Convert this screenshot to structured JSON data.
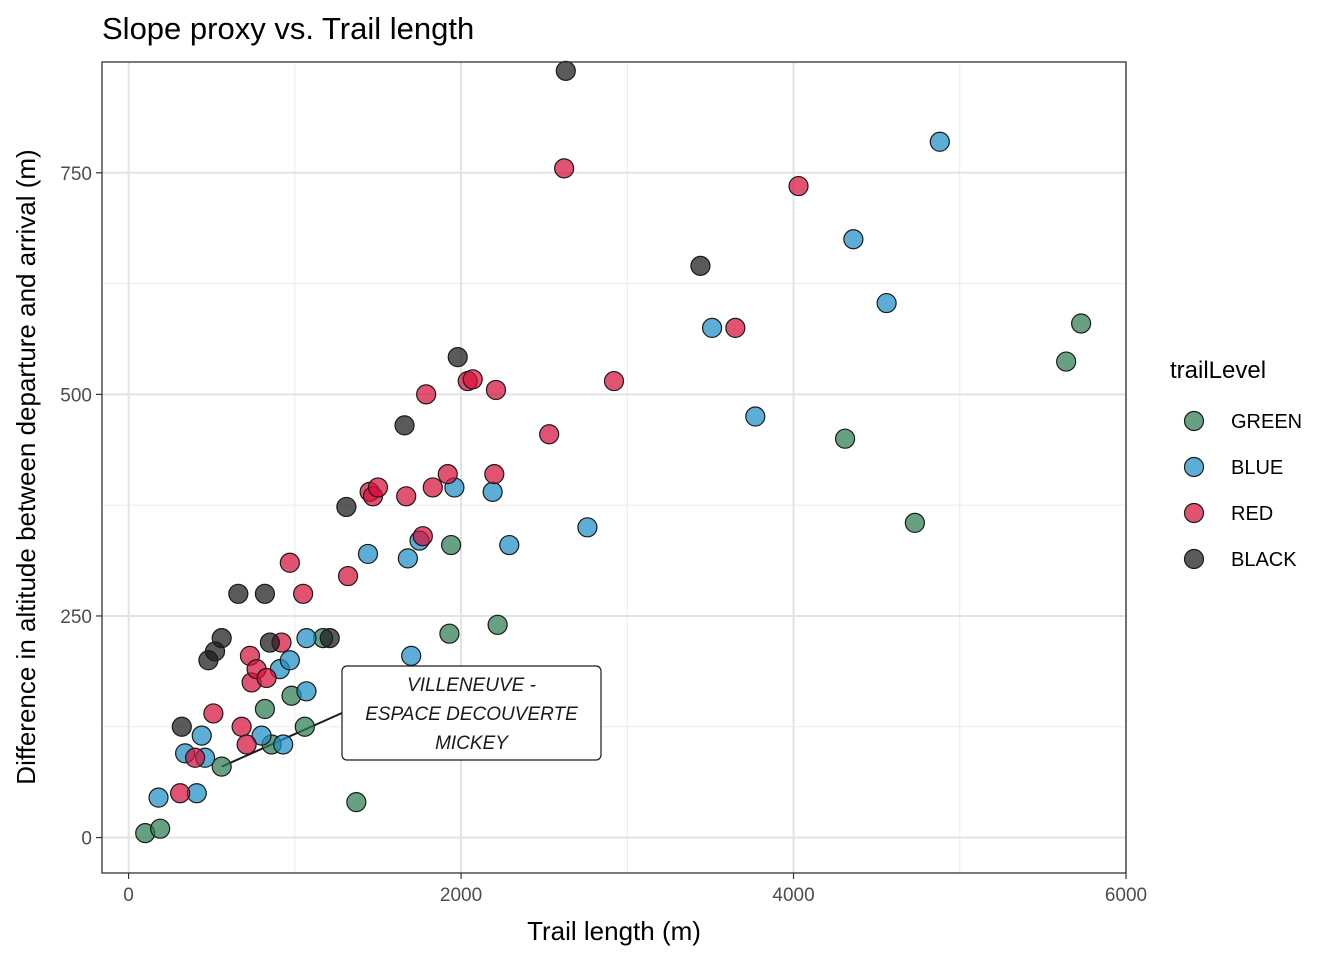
{
  "chart_data": {
    "type": "scatter",
    "title": "Slope proxy vs. Trail length",
    "xlabel": "Trail length (m)",
    "ylabel": "Difference in altitude between departure and arrival (m)",
    "xlim": [
      -160,
      6000
    ],
    "ylim": [
      -40,
      875
    ],
    "x_ticks": [
      0,
      2000,
      4000,
      6000
    ],
    "x_tick_labels": [
      "0",
      "2000",
      "4000",
      "6000"
    ],
    "y_ticks": [
      0,
      250,
      500,
      750
    ],
    "y_tick_labels": [
      "0",
      "250",
      "500",
      "750"
    ],
    "grid": true,
    "legend": {
      "title": "trailLevel",
      "position": "right",
      "entries": [
        {
          "label": "GREEN",
          "color": "#2E7D52"
        },
        {
          "label": "BLUE",
          "color": "#1F8FC8"
        },
        {
          "label": "RED",
          "color": "#D5103A"
        },
        {
          "label": "BLACK",
          "color": "#1B1B1B"
        }
      ]
    },
    "series": [
      {
        "name": "GREEN",
        "color": "#2E7D52",
        "points": [
          [
            100,
            5
          ],
          [
            190,
            10
          ],
          [
            560,
            80
          ],
          [
            820,
            145
          ],
          [
            860,
            105
          ],
          [
            980,
            160
          ],
          [
            1060,
            125
          ],
          [
            1170,
            225
          ],
          [
            1370,
            40
          ],
          [
            1930,
            230
          ],
          [
            1940,
            330
          ],
          [
            2220,
            240
          ],
          [
            4310,
            450
          ],
          [
            4730,
            355
          ],
          [
            5640,
            537
          ],
          [
            5730,
            580
          ]
        ]
      },
      {
        "name": "BLUE",
        "color": "#1F8FC8",
        "points": [
          [
            180,
            45
          ],
          [
            340,
            95
          ],
          [
            410,
            50
          ],
          [
            440,
            115
          ],
          [
            460,
            90
          ],
          [
            800,
            115
          ],
          [
            910,
            190
          ],
          [
            930,
            105
          ],
          [
            970,
            200
          ],
          [
            1070,
            165
          ],
          [
            1070,
            225
          ],
          [
            1440,
            320
          ],
          [
            1680,
            180
          ],
          [
            1680,
            315
          ],
          [
            1700,
            205
          ],
          [
            1750,
            335
          ],
          [
            1960,
            395
          ],
          [
            2190,
            390
          ],
          [
            2290,
            330
          ],
          [
            2760,
            350
          ],
          [
            3510,
            575
          ],
          [
            3770,
            475
          ],
          [
            4360,
            675
          ],
          [
            4560,
            603
          ],
          [
            4880,
            785
          ]
        ]
      },
      {
        "name": "RED",
        "color": "#D5103A",
        "points": [
          [
            310,
            50
          ],
          [
            400,
            90
          ],
          [
            510,
            140
          ],
          [
            680,
            125
          ],
          [
            710,
            105
          ],
          [
            730,
            205
          ],
          [
            740,
            175
          ],
          [
            770,
            190
          ],
          [
            830,
            180
          ],
          [
            920,
            220
          ],
          [
            970,
            310
          ],
          [
            1050,
            275
          ],
          [
            1320,
            295
          ],
          [
            1450,
            390
          ],
          [
            1470,
            385
          ],
          [
            1500,
            395
          ],
          [
            1670,
            385
          ],
          [
            1770,
            340
          ],
          [
            1790,
            500
          ],
          [
            1830,
            395
          ],
          [
            1920,
            410
          ],
          [
            2040,
            515
          ],
          [
            2070,
            517
          ],
          [
            2200,
            410
          ],
          [
            2210,
            505
          ],
          [
            2530,
            455
          ],
          [
            2620,
            755
          ],
          [
            2920,
            515
          ],
          [
            3650,
            575
          ],
          [
            4030,
            735
          ]
        ]
      },
      {
        "name": "BLACK",
        "color": "#1B1B1B",
        "points": [
          [
            320,
            125
          ],
          [
            480,
            200
          ],
          [
            520,
            210
          ],
          [
            560,
            225
          ],
          [
            660,
            275
          ],
          [
            820,
            275
          ],
          [
            850,
            220
          ],
          [
            1210,
            225
          ],
          [
            1310,
            373
          ],
          [
            1660,
            465
          ],
          [
            1980,
            542
          ],
          [
            2630,
            865
          ],
          [
            3440,
            645
          ]
        ]
      }
    ],
    "annotations": [
      {
        "lines": [
          "VILLENEUVE -",
          "ESPACE DECOUVERTE",
          "MICKEY"
        ],
        "point": [
          560,
          80
        ]
      }
    ]
  }
}
